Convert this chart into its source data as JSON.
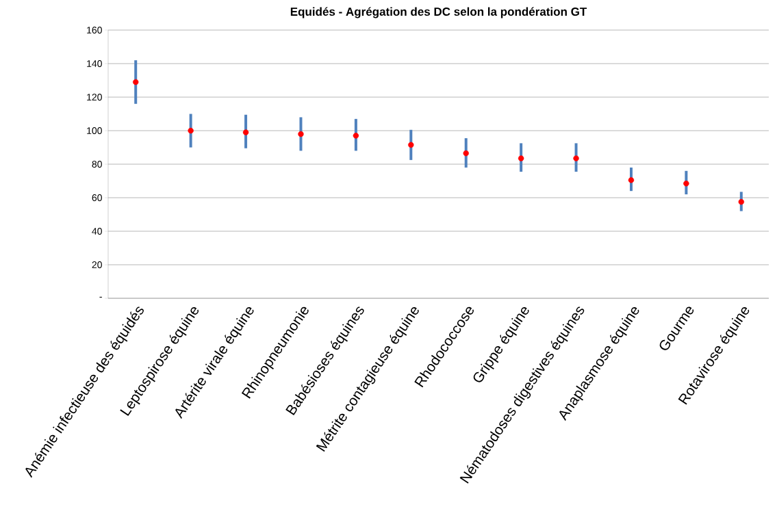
{
  "chart_data": {
    "type": "scatter",
    "title": "Equidés - Agrégation des DC selon la pondération GT",
    "categories": [
      "Anémie infectieuse des équidés",
      "Leptospirose équine",
      "Artérite virale équine",
      "Rhinopneumonie",
      "Babésioses équines",
      "Métrite contagieuse équine",
      "Rhodococcose",
      "Grippe équine",
      "Nématodoses digestives équines",
      "Anaplasmose équine",
      "Gourme",
      "Rotavirose équine"
    ],
    "values": [
      129,
      100,
      99,
      98,
      97,
      91.5,
      86.5,
      83.5,
      83.5,
      70.5,
      68.5,
      57.5
    ],
    "errors": [
      [
        116,
        142
      ],
      [
        90,
        110
      ],
      [
        89.5,
        109.5
      ],
      [
        88,
        108
      ],
      [
        88,
        107
      ],
      [
        82.5,
        100.5
      ],
      [
        78,
        95.5
      ],
      [
        75.5,
        92.5
      ],
      [
        75.5,
        92.5
      ],
      [
        64,
        78
      ],
      [
        62,
        76
      ],
      [
        52,
        63.5
      ]
    ],
    "color": "#ff0000",
    "marker": "circle",
    "ylim": [
      0,
      160
    ],
    "yticks": [
      {
        "value": 0,
        "label": "-"
      },
      20,
      40,
      60,
      80,
      100,
      120,
      140,
      160
    ],
    "grid": "y"
  }
}
